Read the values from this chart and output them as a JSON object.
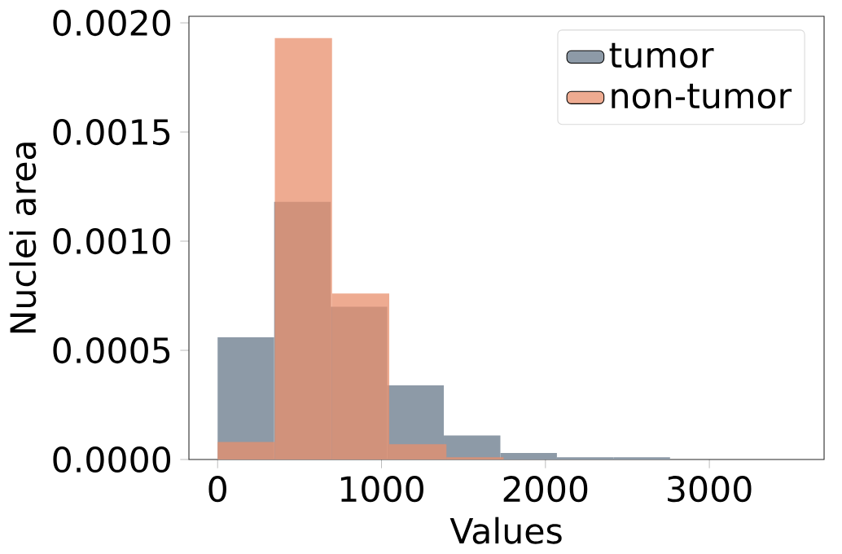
{
  "chart_data": {
    "type": "histogram",
    "xlabel": "Values",
    "ylabel": "Nuclei area",
    "xlim": [
      -175,
      3700
    ],
    "ylim": [
      0,
      0.00203
    ],
    "xticks": [
      {
        "value": 0,
        "label": "0"
      },
      {
        "value": 1000,
        "label": "1000"
      },
      {
        "value": 2000,
        "label": "2000"
      },
      {
        "value": 3000,
        "label": "3000"
      }
    ],
    "yticks": [
      {
        "value": 0,
        "label": "0.0000"
      },
      {
        "value": 0.0005,
        "label": "0.0005"
      },
      {
        "value": 0.001,
        "label": "0.0010"
      },
      {
        "value": 0.0015,
        "label": "0.0015"
      },
      {
        "value": 0.002,
        "label": "0.0020"
      }
    ],
    "legend": "top right",
    "bins": [
      0,
      345,
      690,
      1035,
      1380,
      1725,
      2070,
      2415,
      2760,
      3105,
      3450
    ],
    "series": [
      {
        "name": "tumor",
        "color": "#8d9aa7",
        "values": [
          0.00056,
          0.00118,
          0.0007,
          0.00034,
          0.00011,
          3e-05,
          1e-05,
          1e-05,
          0,
          0
        ]
      },
      {
        "name": "non-tumor",
        "color": "#e88f6c",
        "bins": [
          0,
          349,
          698,
          1047,
          1396,
          1745,
          2094,
          2443,
          2792,
          3141,
          3490
        ],
        "values": [
          8e-05,
          0.00193,
          0.00076,
          7e-05,
          1e-05,
          0,
          0,
          0,
          0,
          0
        ]
      }
    ]
  }
}
